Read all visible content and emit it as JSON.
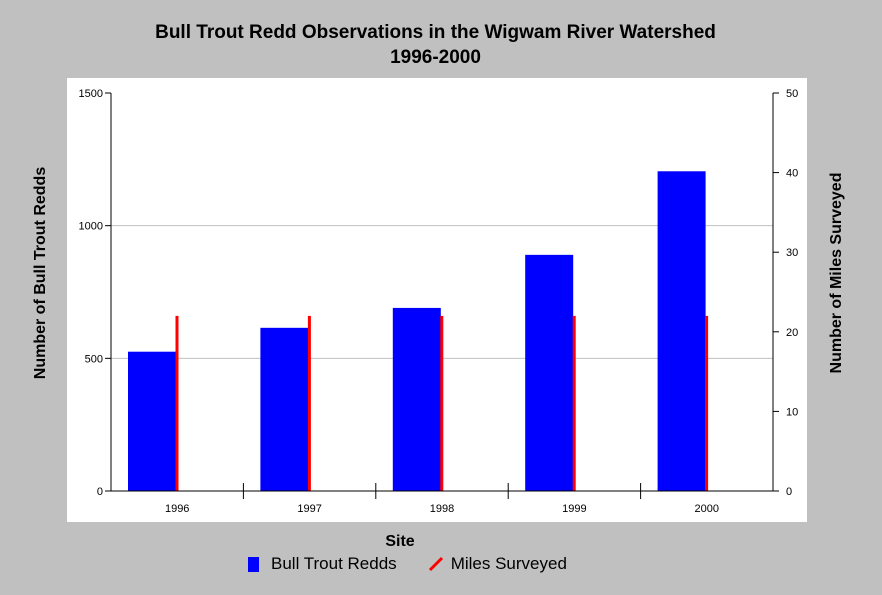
{
  "chart_data": {
    "type": "bar",
    "title": [
      "Bull Trout Redd Observations in the Wigwam River Watershed",
      "1996-2000"
    ],
    "xlabel": "Site",
    "ylabel": "Number of Bull Trout Redds",
    "y2label": "Number of Miles Surveyed",
    "categories": [
      "1996",
      "1997",
      "1998",
      "1999",
      "2000"
    ],
    "ylim": [
      0,
      1500
    ],
    "y2lim": [
      0,
      50
    ],
    "yticks": [
      "0",
      "500",
      "1000",
      "1500"
    ],
    "y2ticks": [
      "0",
      "10",
      "20",
      "30",
      "40",
      "50"
    ],
    "grid": true,
    "legend_placement": "bottom",
    "series": [
      {
        "name": "Bull Trout Redds",
        "type": "bar",
        "axis": "left",
        "color": "#0000ff",
        "values": [
          525,
          615,
          690,
          890,
          1205
        ]
      },
      {
        "name": "Miles Surveyed",
        "type": "line",
        "axis": "right",
        "color": "#ff0000",
        "values": [
          22,
          22,
          22,
          22,
          22
        ]
      }
    ]
  },
  "colors": {
    "background": "#c0c0c0",
    "plot_background": "#ffffff",
    "gridline": "#c0c0c0"
  },
  "legend": {
    "items": [
      {
        "label": "Bull Trout Redds",
        "icon": "blue-bar-swatch"
      },
      {
        "label": "Miles Surveyed",
        "icon": "red-line-swatch"
      }
    ]
  }
}
